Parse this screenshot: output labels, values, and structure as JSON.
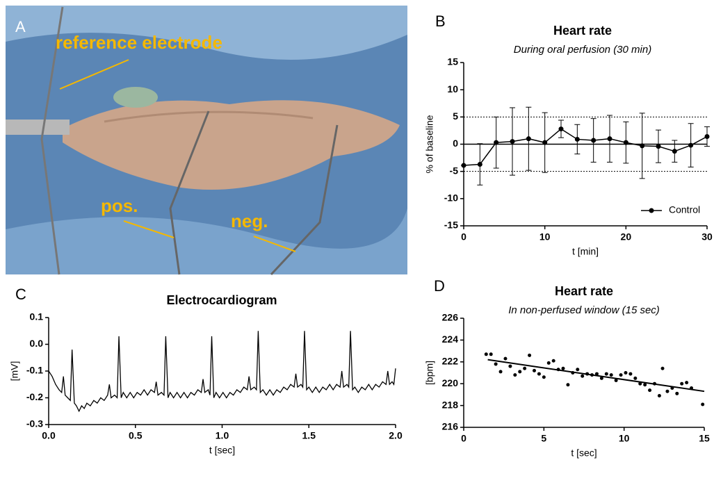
{
  "photo": {
    "label": "A",
    "annotations": [
      "reference electrode",
      "pos.",
      "neg."
    ]
  },
  "chart_data": [
    {
      "type": "errorline",
      "label": "B",
      "title": "Heart rate",
      "subtitle": "During oral perfusion (30 min)",
      "xlabel": "t [min]",
      "ylabel": "% of baseline",
      "x": [
        0,
        2,
        4,
        6,
        8,
        10,
        12,
        14,
        16,
        18,
        20,
        22,
        24,
        26,
        28,
        30
      ],
      "series": [
        {
          "name": "Control",
          "color": "#000000",
          "values": [
            -3.9,
            -3.7,
            0.3,
            0.5,
            1.0,
            0.3,
            2.8,
            0.9,
            0.7,
            1.0,
            0.3,
            -0.3,
            -0.4,
            -1.3,
            -0.2,
            1.4
          ],
          "errors": [
            0,
            3.8,
            4.7,
            6.2,
            5.8,
            5.5,
            1.6,
            2.7,
            4.0,
            4.3,
            3.8,
            6.0,
            3.0,
            2.0,
            4.0,
            1.8
          ]
        }
      ],
      "xlim": [
        0,
        30
      ],
      "xticks": [
        0,
        10,
        20,
        30
      ],
      "ylim": [
        -15,
        15
      ],
      "yticks": [
        -15,
        -10,
        -5,
        0,
        5,
        10,
        15
      ],
      "ref_lines": [
        {
          "value": 5,
          "style": "dotted"
        },
        {
          "value": -5,
          "style": "dotted"
        },
        {
          "value": 0,
          "style": "solid"
        }
      ],
      "legend": "lower right"
    },
    {
      "type": "line",
      "label": "C",
      "title": "Electrocardiogram",
      "xlabel": "t [sec]",
      "ylabel": "[mV]",
      "color": "#000000",
      "x": [
        0.0,
        0.02,
        0.04,
        0.06,
        0.075,
        0.085,
        0.095,
        0.11,
        0.125,
        0.135,
        0.148,
        0.16,
        0.175,
        0.19,
        0.205,
        0.22,
        0.24,
        0.26,
        0.28,
        0.3,
        0.32,
        0.34,
        0.35,
        0.36,
        0.38,
        0.395,
        0.405,
        0.418,
        0.43,
        0.45,
        0.47,
        0.49,
        0.51,
        0.53,
        0.55,
        0.57,
        0.59,
        0.61,
        0.62,
        0.63,
        0.65,
        0.665,
        0.675,
        0.688,
        0.7,
        0.72,
        0.74,
        0.76,
        0.78,
        0.8,
        0.82,
        0.84,
        0.86,
        0.88,
        0.89,
        0.9,
        0.92,
        0.93,
        0.94,
        0.952,
        0.965,
        0.985,
        1.005,
        1.025,
        1.045,
        1.065,
        1.085,
        1.105,
        1.125,
        1.145,
        1.155,
        1.165,
        1.185,
        1.198,
        1.208,
        1.22,
        1.235,
        1.255,
        1.275,
        1.295,
        1.315,
        1.335,
        1.355,
        1.375,
        1.395,
        1.415,
        1.425,
        1.435,
        1.455,
        1.465,
        1.475,
        1.487,
        1.5,
        1.52,
        1.54,
        1.56,
        1.58,
        1.6,
        1.62,
        1.64,
        1.66,
        1.68,
        1.69,
        1.7,
        1.72,
        1.73,
        1.74,
        1.752,
        1.765,
        1.785,
        1.805,
        1.825,
        1.845,
        1.865,
        1.885,
        1.905,
        1.925,
        1.945,
        1.955,
        1.965,
        1.98,
        1.99,
        2.0
      ],
      "values": [
        -0.1,
        -0.12,
        -0.15,
        -0.17,
        -0.18,
        -0.12,
        -0.19,
        -0.2,
        -0.21,
        -0.02,
        -0.22,
        -0.23,
        -0.25,
        -0.23,
        -0.24,
        -0.22,
        -0.23,
        -0.21,
        -0.22,
        -0.2,
        -0.21,
        -0.19,
        -0.15,
        -0.2,
        -0.19,
        -0.2,
        0.03,
        -0.2,
        -0.18,
        -0.2,
        -0.18,
        -0.2,
        -0.18,
        -0.19,
        -0.17,
        -0.19,
        -0.17,
        -0.18,
        -0.14,
        -0.19,
        -0.18,
        -0.19,
        0.03,
        -0.2,
        -0.18,
        -0.2,
        -0.18,
        -0.2,
        -0.18,
        -0.2,
        -0.18,
        -0.19,
        -0.17,
        -0.18,
        -0.13,
        -0.18,
        -0.17,
        -0.19,
        0.03,
        -0.2,
        -0.18,
        -0.2,
        -0.18,
        -0.2,
        -0.18,
        -0.19,
        -0.17,
        -0.18,
        -0.16,
        -0.17,
        -0.12,
        -0.17,
        -0.16,
        -0.17,
        0.05,
        -0.18,
        -0.17,
        -0.19,
        -0.17,
        -0.19,
        -0.17,
        -0.18,
        -0.16,
        -0.17,
        -0.15,
        -0.16,
        -0.11,
        -0.16,
        -0.15,
        -0.16,
        0.05,
        -0.17,
        -0.16,
        -0.18,
        -0.16,
        -0.18,
        -0.16,
        -0.17,
        -0.15,
        -0.17,
        -0.15,
        -0.16,
        -0.1,
        -0.16,
        -0.15,
        -0.16,
        0.05,
        -0.17,
        -0.16,
        -0.18,
        -0.16,
        -0.17,
        -0.15,
        -0.17,
        -0.15,
        -0.16,
        -0.14,
        -0.15,
        -0.1,
        -0.15,
        -0.14,
        -0.15,
        -0.09
      ],
      "xlim": [
        0,
        2
      ],
      "xticks": [
        {
          "value": 0,
          "label": "0.0"
        },
        0.5,
        {
          "value": 1,
          "label": "1.0"
        },
        1.5,
        {
          "value": 2,
          "label": "2.0"
        }
      ],
      "ylim": [
        -0.3,
        0.1
      ],
      "yticks": [
        -0.3,
        -0.2,
        -0.1,
        {
          "value": 0,
          "label": "0.0"
        },
        0.1
      ]
    },
    {
      "type": "scatter",
      "label": "D",
      "title": "Heart rate",
      "subtitle": "In non-perfused window (15 sec)",
      "xlabel": "t [sec]",
      "ylabel": "[bpm]",
      "color": "#000000",
      "x": [
        1.4,
        1.7,
        2.0,
        2.3,
        2.6,
        2.9,
        3.2,
        3.5,
        3.8,
        4.1,
        4.4,
        4.7,
        5.0,
        5.3,
        5.6,
        5.9,
        6.2,
        6.5,
        6.8,
        7.1,
        7.4,
        7.7,
        8.0,
        8.3,
        8.6,
        8.9,
        9.2,
        9.5,
        9.8,
        10.1,
        10.4,
        10.7,
        11.0,
        11.3,
        11.6,
        11.9,
        12.2,
        12.4,
        12.7,
        13.0,
        13.3,
        13.6,
        13.9,
        14.2,
        14.9
      ],
      "values": [
        222.7,
        222.7,
        221.8,
        221.1,
        222.3,
        221.6,
        220.8,
        221.1,
        221.4,
        222.6,
        221.2,
        220.9,
        220.6,
        221.9,
        222.1,
        221.3,
        221.4,
        219.9,
        221.0,
        221.3,
        220.7,
        220.9,
        220.8,
        220.9,
        220.5,
        220.9,
        220.8,
        220.3,
        220.8,
        221.0,
        220.9,
        220.5,
        220.0,
        219.9,
        219.4,
        220.0,
        218.9,
        221.4,
        219.3,
        219.6,
        219.1,
        220.0,
        220.1,
        219.6,
        218.1
      ],
      "fit": {
        "x": [
          1.5,
          15
        ],
        "y": [
          222.2,
          219.3
        ]
      },
      "xlim": [
        0,
        15
      ],
      "xticks": [
        0,
        5,
        10,
        15
      ],
      "ylim": [
        216,
        226
      ],
      "yticks": [
        216,
        218,
        220,
        222,
        224,
        226
      ]
    }
  ]
}
